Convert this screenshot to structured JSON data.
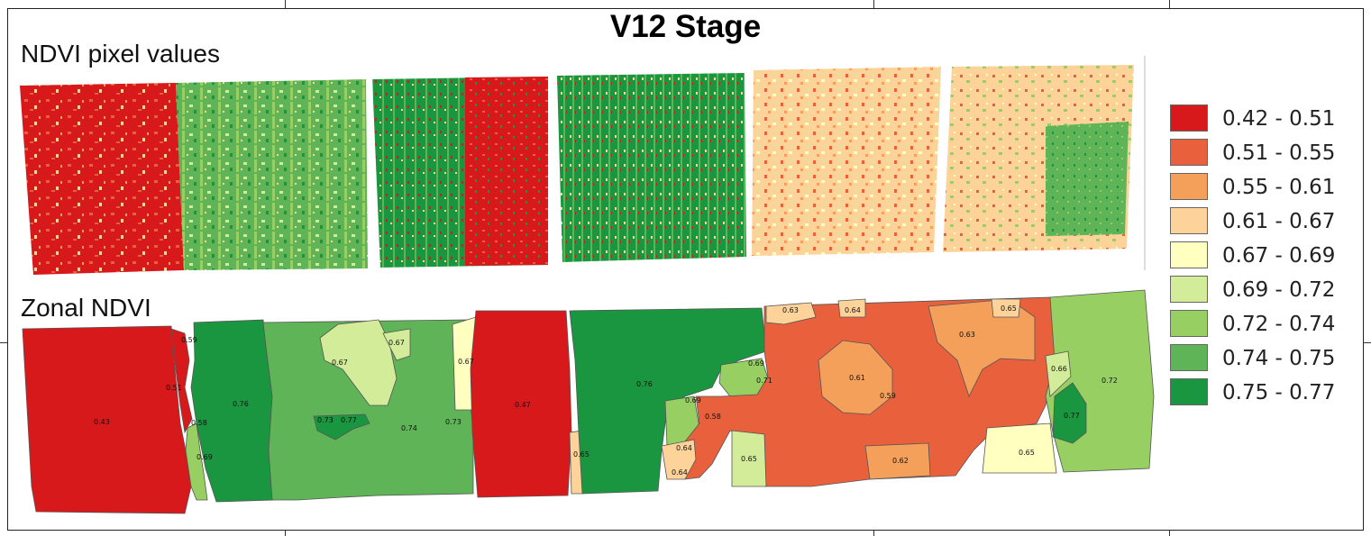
{
  "title": "V12 Stage",
  "panels": {
    "pixel_label": "NDVI pixel values",
    "zonal_label": "Zonal NDVI"
  },
  "legend": [
    {
      "label": "0.42 - 0.51",
      "color": "#d7191c"
    },
    {
      "label": "0.51 - 0.55",
      "color": "#e8603c"
    },
    {
      "label": "0.55 - 0.61",
      "color": "#f5a05a"
    },
    {
      "label": "0.61 - 0.67",
      "color": "#fdd39a"
    },
    {
      "label": "0.67 - 0.69",
      "color": "#ffffc0"
    },
    {
      "label": "0.69 - 0.72",
      "color": "#d3ec9a"
    },
    {
      "label": "0.72 - 0.74",
      "color": "#97cf62"
    },
    {
      "label": "0.74 - 0.75",
      "color": "#5fb458"
    },
    {
      "label": "0.75 - 0.77",
      "color": "#1a9641"
    }
  ],
  "pixel_fields": [
    {
      "dominant": [
        "#d7191c",
        "#e8603c",
        "#fdd39a"
      ]
    },
    {
      "dominant": [
        "#5fb458",
        "#97cf62",
        "#d3ec9a"
      ]
    },
    {
      "dominant": [
        "#1a9641",
        "#d7191c",
        "#fdd39a"
      ]
    },
    {
      "dominant": [
        "#1a9641",
        "#5fb458",
        "#d7191c"
      ]
    },
    {
      "dominant": [
        "#fdd39a",
        "#e8603c",
        "#ffffc0"
      ]
    },
    {
      "dominant": [
        "#fdd39a",
        "#e8603c",
        "#5fb458"
      ]
    }
  ],
  "zone_values": [
    "0.43",
    "0.59",
    "0.51",
    "0.58",
    "0.69",
    "0.76",
    "0.67",
    "0.67",
    "0.73",
    "0.77",
    "0.74",
    "0.73",
    "0.67",
    "0.47",
    "0.65",
    "0.76",
    "0.69",
    "0.71",
    "0.69",
    "0.58",
    "0.64",
    "0.64",
    "0.65",
    "0.63",
    "0.64",
    "0.61",
    "0.59",
    "0.63",
    "0.65",
    "0.62",
    "0.66",
    "0.65",
    "0.72",
    "0.77"
  ]
}
